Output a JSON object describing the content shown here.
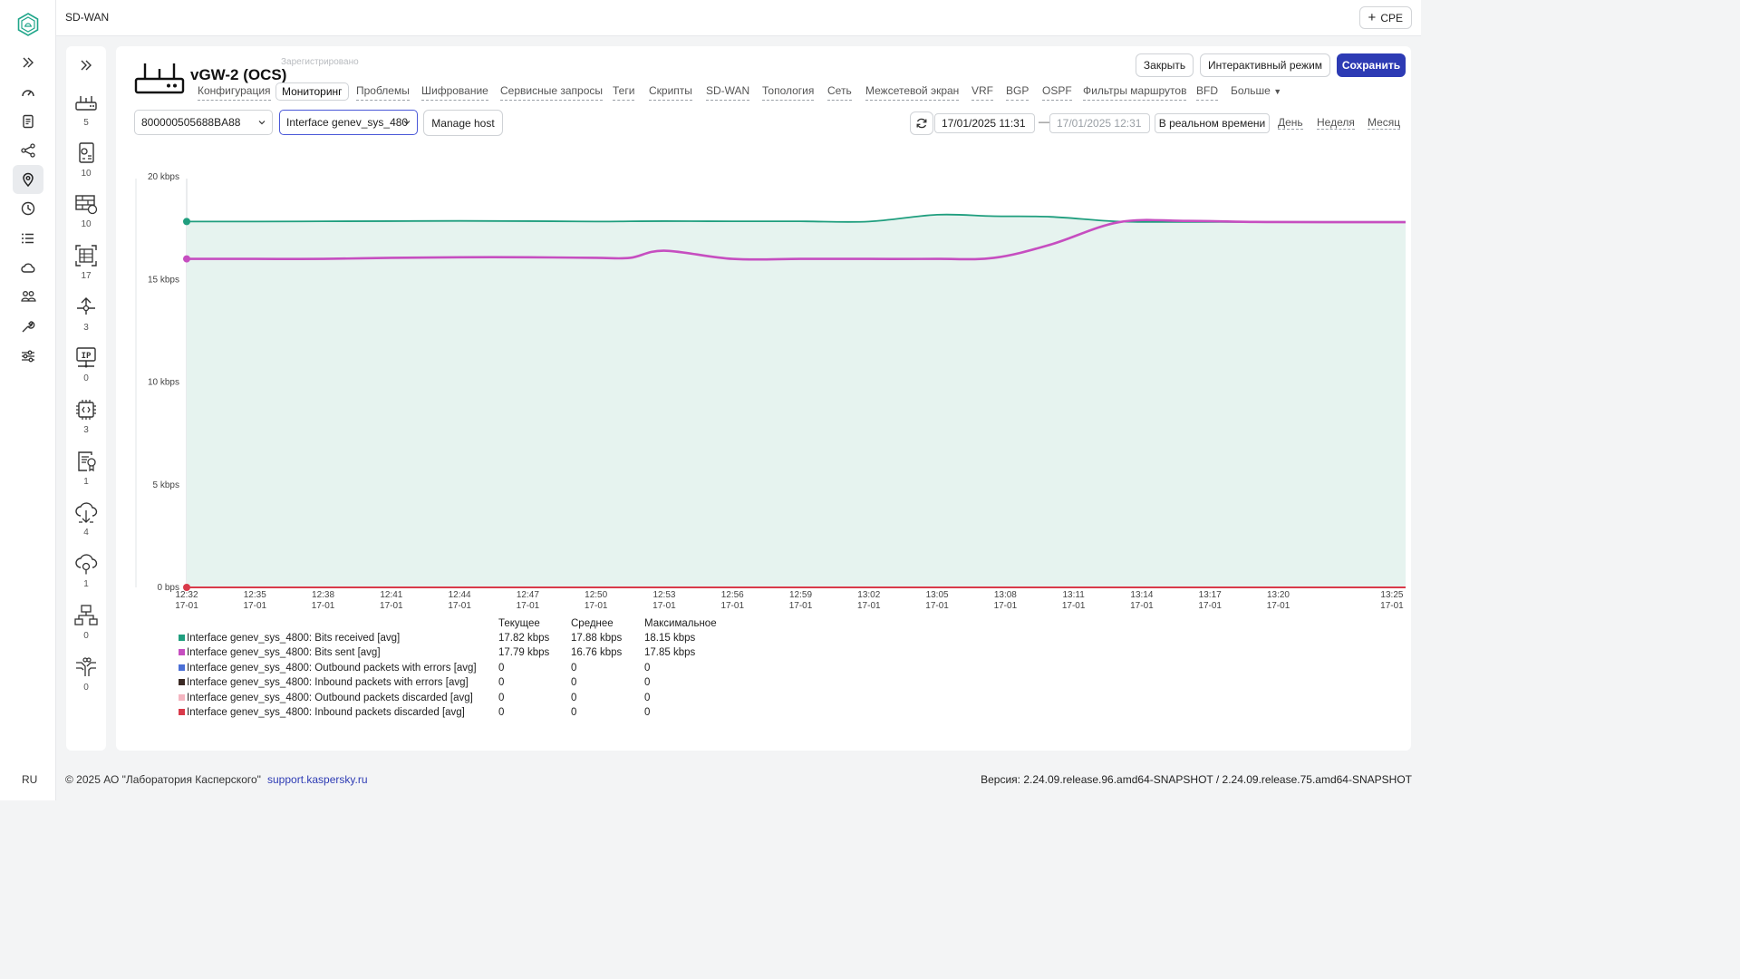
{
  "app": {
    "section_title": "SD-WAN",
    "language": "RU"
  },
  "topbar": {
    "add_cpe_label": "CPE"
  },
  "rail": {
    "items": [
      {
        "icon": "expand-icon"
      },
      {
        "icon": "dashboard-icon"
      },
      {
        "icon": "document-icon"
      },
      {
        "icon": "share-icon"
      },
      {
        "icon": "location-icon"
      },
      {
        "icon": "clock-icon"
      },
      {
        "icon": "list-icon"
      },
      {
        "icon": "cloud-icon"
      },
      {
        "icon": "users-icon"
      },
      {
        "icon": "wrench-icon"
      },
      {
        "icon": "sliders-icon"
      }
    ]
  },
  "subnav": {
    "items": [
      {
        "icon": "router-icon",
        "count": "5"
      },
      {
        "icon": "config-doc-icon",
        "count": "10"
      },
      {
        "icon": "firewall-icon",
        "count": "10"
      },
      {
        "icon": "grid-frame-icon",
        "count": "17"
      },
      {
        "icon": "branch-icon",
        "count": "3"
      },
      {
        "icon": "ip-monitor-icon",
        "count": "0"
      },
      {
        "icon": "script-chip-icon",
        "count": "3"
      },
      {
        "icon": "certificate-icon",
        "count": "1"
      },
      {
        "icon": "cloud-download-icon",
        "count": "4"
      },
      {
        "icon": "cloud-upload-icon",
        "count": "1"
      },
      {
        "icon": "network-tree-icon",
        "count": "0"
      },
      {
        "icon": "circuit-icon",
        "count": "0"
      }
    ]
  },
  "device": {
    "title": "vGW-2 (OCS)",
    "status": "Зарегистрировано",
    "buttons": {
      "close": "Закрыть",
      "interactive": "Интерактивный режим",
      "save": "Сохранить"
    }
  },
  "tabs": [
    {
      "label": "Конфигурация"
    },
    {
      "label": "Мониторинг"
    },
    {
      "label": "Проблемы"
    },
    {
      "label": "Шифрование"
    },
    {
      "label": "Сервисные запросы"
    },
    {
      "label": "Теги"
    },
    {
      "label": "Скрипты"
    },
    {
      "label": "SD-WAN"
    },
    {
      "label": "Топология"
    },
    {
      "label": "Сеть"
    },
    {
      "label": "Межсетевой экран"
    },
    {
      "label": "VRF"
    },
    {
      "label": "BGP"
    },
    {
      "label": "OSPF"
    },
    {
      "label": "Фильтры маршрутов"
    },
    {
      "label": "BFD"
    },
    {
      "label": "Больше"
    }
  ],
  "controls": {
    "host_select": "800000505688BA88",
    "item_select": "Interface genev_sys_480",
    "manage_host": "Manage host",
    "date_from": "17/01/2025 11:31",
    "date_to": "17/01/2025 12:31",
    "date_separator": "—",
    "realtime": "В реальном времени",
    "periods": [
      "День",
      "Неделя",
      "Месяц"
    ]
  },
  "legend_headers": {
    "current": "Текущее",
    "avg": "Среднее",
    "max": "Максимальное"
  },
  "chart_data": {
    "type": "line",
    "ylim": [
      0,
      20
    ],
    "y_ticks": [
      {
        "value": 0,
        "label": "0 bps"
      },
      {
        "value": 5,
        "label": "5 kbps"
      },
      {
        "value": 10,
        "label": "10 kbps"
      },
      {
        "value": 15,
        "label": "15 kbps"
      },
      {
        "value": 20,
        "label": "20 kbps"
      }
    ],
    "x_ticks": [
      {
        "time": "12:32",
        "date": "17-01"
      },
      {
        "time": "12:35",
        "date": "17-01"
      },
      {
        "time": "12:38",
        "date": "17-01"
      },
      {
        "time": "12:41",
        "date": "17-01"
      },
      {
        "time": "12:44",
        "date": "17-01"
      },
      {
        "time": "12:47",
        "date": "17-01"
      },
      {
        "time": "12:50",
        "date": "17-01"
      },
      {
        "time": "12:53",
        "date": "17-01"
      },
      {
        "time": "12:56",
        "date": "17-01"
      },
      {
        "time": "12:59",
        "date": "17-01"
      },
      {
        "time": "13:02",
        "date": "17-01"
      },
      {
        "time": "13:05",
        "date": "17-01"
      },
      {
        "time": "13:08",
        "date": "17-01"
      },
      {
        "time": "13:11",
        "date": "17-01"
      },
      {
        "time": "13:14",
        "date": "17-01"
      },
      {
        "time": "13:17",
        "date": "17-01"
      },
      {
        "time": "13:20",
        "date": "17-01"
      },
      {
        "time": "13:25",
        "date": "17-01"
      }
    ],
    "x_minutes": [
      0,
      3,
      6,
      9,
      12,
      15,
      18,
      19.5,
      21,
      24,
      27,
      30,
      33,
      35.5,
      38,
      41,
      44,
      47,
      50,
      53.6
    ],
    "series": [
      {
        "name": "Interface genev_sys_4800: Bits received [avg]",
        "color": "#1f9e7e",
        "fill": true,
        "values": [
          17.82,
          17.82,
          17.83,
          17.84,
          17.85,
          17.84,
          17.82,
          17.83,
          17.84,
          17.83,
          17.83,
          17.82,
          18.15,
          18.08,
          18.05,
          17.82,
          17.8,
          17.8,
          17.8,
          17.8
        ],
        "current": "17.82 kbps",
        "avg": "17.88 kbps",
        "max": "18.15 kbps"
      },
      {
        "name": "Interface genev_sys_4800: Bits sent [avg]",
        "color": "#c64ec0",
        "values": [
          16.0,
          16.0,
          16.0,
          16.05,
          16.08,
          16.08,
          16.05,
          16.05,
          16.4,
          16.0,
          16.0,
          16.0,
          16.0,
          16.05,
          16.7,
          17.79,
          17.85,
          17.8,
          17.79,
          17.79
        ],
        "current": "17.79 kbps",
        "avg": "16.76 kbps",
        "max": "17.85 kbps"
      },
      {
        "name": "Interface genev_sys_4800: Outbound packets with errors [avg]",
        "color": "#4a6fd6",
        "values": [],
        "current": "0",
        "avg": "0",
        "max": "0"
      },
      {
        "name": "Interface genev_sys_4800: Inbound packets with errors [avg]",
        "color": "#3b2a24",
        "values": [],
        "current": "0",
        "avg": "0",
        "max": "0"
      },
      {
        "name": "Interface genev_sys_4800: Outbound packets discarded [avg]",
        "color": "#f4b5c0",
        "values": [],
        "current": "0",
        "avg": "0",
        "max": "0"
      },
      {
        "name": "Interface genev_sys_4800: Inbound packets discarded [avg]",
        "color": "#d93a4a",
        "values": [
          0,
          0
        ],
        "current": "0",
        "avg": "0",
        "max": "0"
      }
    ]
  },
  "footer": {
    "copyright": "© 2025 АО \"Лаборатория Касперского\"",
    "support_link": "support.kaspersky.ru",
    "version": "Версия: 2.24.09.release.96.amd64-SNAPSHOT / 2.24.09.release.75.amd64-SNAPSHOT"
  }
}
